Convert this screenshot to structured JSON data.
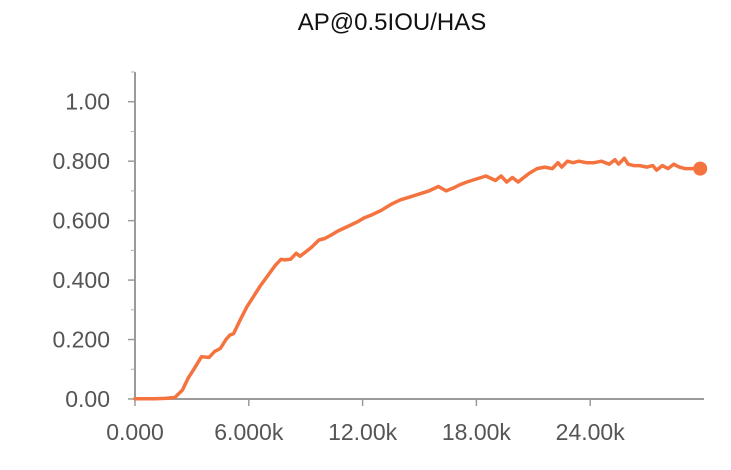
{
  "chart_data": {
    "type": "line",
    "title": "AP@0.5IOU/HAS",
    "xlabel": "",
    "ylabel": "",
    "xlim": [
      0,
      30000
    ],
    "ylim": [
      0,
      1.1
    ],
    "grid": false,
    "legend": "none",
    "x_ticks": [
      {
        "value": 0,
        "label": "0.000"
      },
      {
        "value": 6000,
        "label": "6.000k"
      },
      {
        "value": 12000,
        "label": "12.00k"
      },
      {
        "value": 18000,
        "label": "18.00k"
      },
      {
        "value": 24000,
        "label": "24.00k"
      }
    ],
    "y_ticks": [
      {
        "value": 0,
        "label": "0.00"
      },
      {
        "value": 0.2,
        "label": "0.200"
      },
      {
        "value": 0.4,
        "label": "0.400"
      },
      {
        "value": 0.6,
        "label": "0.600"
      },
      {
        "value": 0.8,
        "label": "0.800"
      },
      {
        "value": 1.0,
        "label": "1.00"
      }
    ],
    "series": [
      {
        "color": "#f4733f",
        "x": [
          0,
          1000,
          1600,
          2100,
          2500,
          2800,
          3100,
          3500,
          3900,
          4200,
          4500,
          4800,
          5000,
          5200,
          5500,
          5900,
          6200,
          6600,
          7000,
          7400,
          7700,
          7900,
          8200,
          8500,
          8700,
          9000,
          9300,
          9700,
          10000,
          10300,
          10700,
          11200,
          11700,
          12100,
          12500,
          13000,
          13500,
          14000,
          14500,
          15000,
          15500,
          16000,
          16400,
          16800,
          17100,
          17500,
          18000,
          18500,
          19000,
          19300,
          19600,
          19900,
          20200,
          20500,
          20800,
          21200,
          21600,
          22000,
          22300,
          22500,
          22800,
          23100,
          23400,
          23800,
          24200,
          24600,
          25000,
          25300,
          25500,
          25800,
          26000,
          26300,
          26600,
          27000,
          27300,
          27500,
          27800,
          28100,
          28400,
          28700,
          29000,
          29300,
          29800
        ],
        "y": [
          0.001,
          0.001,
          0.002,
          0.005,
          0.03,
          0.07,
          0.1,
          0.142,
          0.14,
          0.16,
          0.17,
          0.2,
          0.215,
          0.22,
          0.26,
          0.31,
          0.34,
          0.38,
          0.415,
          0.45,
          0.47,
          0.468,
          0.47,
          0.49,
          0.48,
          0.495,
          0.51,
          0.535,
          0.54,
          0.55,
          0.565,
          0.58,
          0.595,
          0.61,
          0.62,
          0.635,
          0.655,
          0.67,
          0.68,
          0.69,
          0.7,
          0.715,
          0.7,
          0.71,
          0.72,
          0.73,
          0.74,
          0.75,
          0.735,
          0.75,
          0.73,
          0.745,
          0.73,
          0.745,
          0.76,
          0.775,
          0.78,
          0.775,
          0.795,
          0.78,
          0.8,
          0.795,
          0.8,
          0.795,
          0.795,
          0.8,
          0.79,
          0.805,
          0.79,
          0.81,
          0.79,
          0.785,
          0.785,
          0.78,
          0.785,
          0.77,
          0.785,
          0.775,
          0.79,
          0.78,
          0.775,
          0.775,
          0.775
        ]
      }
    ]
  }
}
